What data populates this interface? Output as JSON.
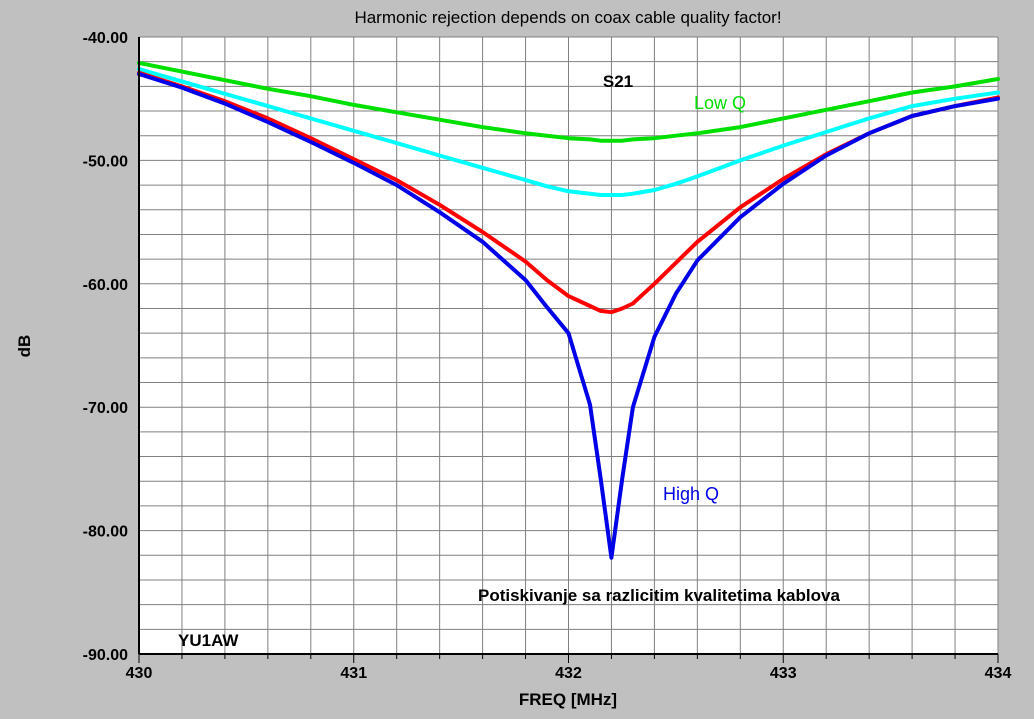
{
  "chart_data": {
    "type": "line",
    "title": "Harmonic rejection depends on coax cable quality factor!",
    "xlabel": "FREQ [MHz]",
    "ylabel": "dB",
    "xlim": [
      430,
      434
    ],
    "ylim": [
      -90,
      -40
    ],
    "x_ticks": [
      "430",
      "431",
      "432",
      "433",
      "434"
    ],
    "y_ticks": [
      "-40.00",
      "-50.00",
      "-60.00",
      "-70.00",
      "-80.00",
      "-90.00"
    ],
    "grid": true,
    "annotations": {
      "s21": "S21",
      "low_q": "Low Q",
      "high_q": "High Q",
      "caption": "Potiskivanje sa razlicitim kvalitetima kablova",
      "author": "YU1AW"
    },
    "x": [
      430.0,
      430.2,
      430.4,
      430.6,
      430.8,
      431.0,
      431.2,
      431.4,
      431.6,
      431.8,
      431.9,
      432.0,
      432.1,
      432.15,
      432.2,
      432.25,
      432.3,
      432.4,
      432.5,
      432.6,
      432.8,
      433.0,
      433.2,
      433.4,
      433.6,
      433.8,
      434.0
    ],
    "series": [
      {
        "color": "#00e000",
        "values": [
          -42.1,
          -42.8,
          -43.5,
          -44.2,
          -44.8,
          -45.5,
          -46.1,
          -46.7,
          -47.3,
          -47.8,
          -48.0,
          -48.2,
          -48.3,
          -48.4,
          -48.4,
          -48.4,
          -48.3,
          -48.2,
          -48.0,
          -47.8,
          -47.3,
          -46.6,
          -45.9,
          -45.2,
          -44.5,
          -44.0,
          -43.4
        ]
      },
      {
        "color": "#00ffff",
        "values": [
          -42.6,
          -43.6,
          -44.6,
          -45.6,
          -46.6,
          -47.6,
          -48.6,
          -49.6,
          -50.6,
          -51.6,
          -52.1,
          -52.5,
          -52.7,
          -52.8,
          -52.8,
          -52.8,
          -52.7,
          -52.4,
          -51.9,
          -51.3,
          -50.0,
          -48.8,
          -47.7,
          -46.6,
          -45.6,
          -45.0,
          -44.5
        ]
      },
      {
        "color": "#ff0000",
        "values": [
          -42.9,
          -44.0,
          -45.2,
          -46.6,
          -48.2,
          -49.9,
          -51.6,
          -53.6,
          -55.8,
          -58.2,
          -59.7,
          -61.0,
          -61.8,
          -62.2,
          -62.3,
          -62.0,
          -61.6,
          -60.0,
          -58.3,
          -56.6,
          -53.8,
          -51.5,
          -49.5,
          -47.8,
          -46.4,
          -45.6,
          -44.9
        ]
      },
      {
        "color": "#0000e8",
        "values": [
          -43.0,
          -44.1,
          -45.4,
          -46.9,
          -48.5,
          -50.2,
          -52.0,
          -54.2,
          -56.6,
          -59.7,
          -61.9,
          -64.0,
          -69.8,
          -75.8,
          -82.2,
          -75.8,
          -70.0,
          -64.3,
          -60.8,
          -58.1,
          -54.6,
          -51.9,
          -49.6,
          -47.8,
          -46.4,
          -45.6,
          -45.0
        ]
      }
    ]
  }
}
